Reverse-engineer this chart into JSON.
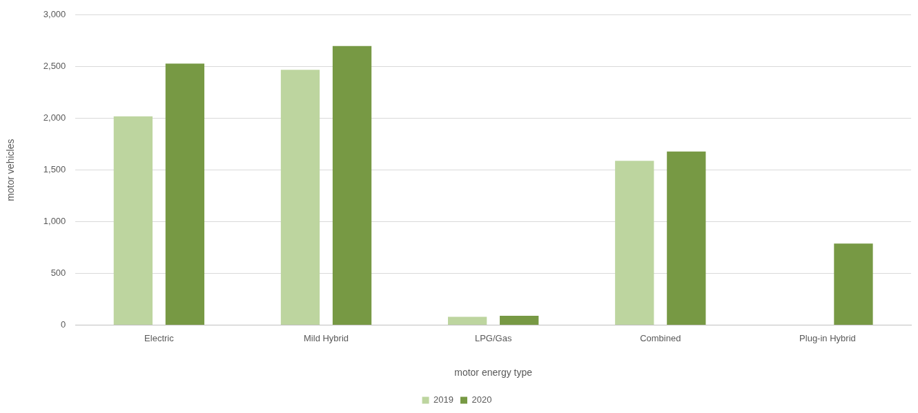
{
  "chart_data": {
    "type": "bar",
    "xlabel": "motor energy type",
    "ylabel": "motor vehicles",
    "categories": [
      "Electric",
      "Mild Hybrid",
      "LPG/Gas",
      "Combined",
      "Plug-in Hybrid"
    ],
    "series": [
      {
        "name": "2019",
        "color": "#bdd59f",
        "values": [
          2020,
          2470,
          80,
          1590,
          0
        ]
      },
      {
        "name": "2020",
        "color": "#779944",
        "values": [
          2530,
          2700,
          90,
          1680,
          790
        ]
      }
    ],
    "ylim": [
      0,
      3000
    ],
    "yticks": [
      0,
      500,
      {
        "value": 1000,
        "label": "1,000"
      },
      {
        "value": 1500,
        "label": "1,500"
      },
      {
        "value": 2000,
        "label": "2,000"
      },
      {
        "value": 2500,
        "label": "2,500"
      },
      {
        "value": 3000,
        "label": "3,000"
      }
    ],
    "grid": "y",
    "legend": "bottom"
  }
}
